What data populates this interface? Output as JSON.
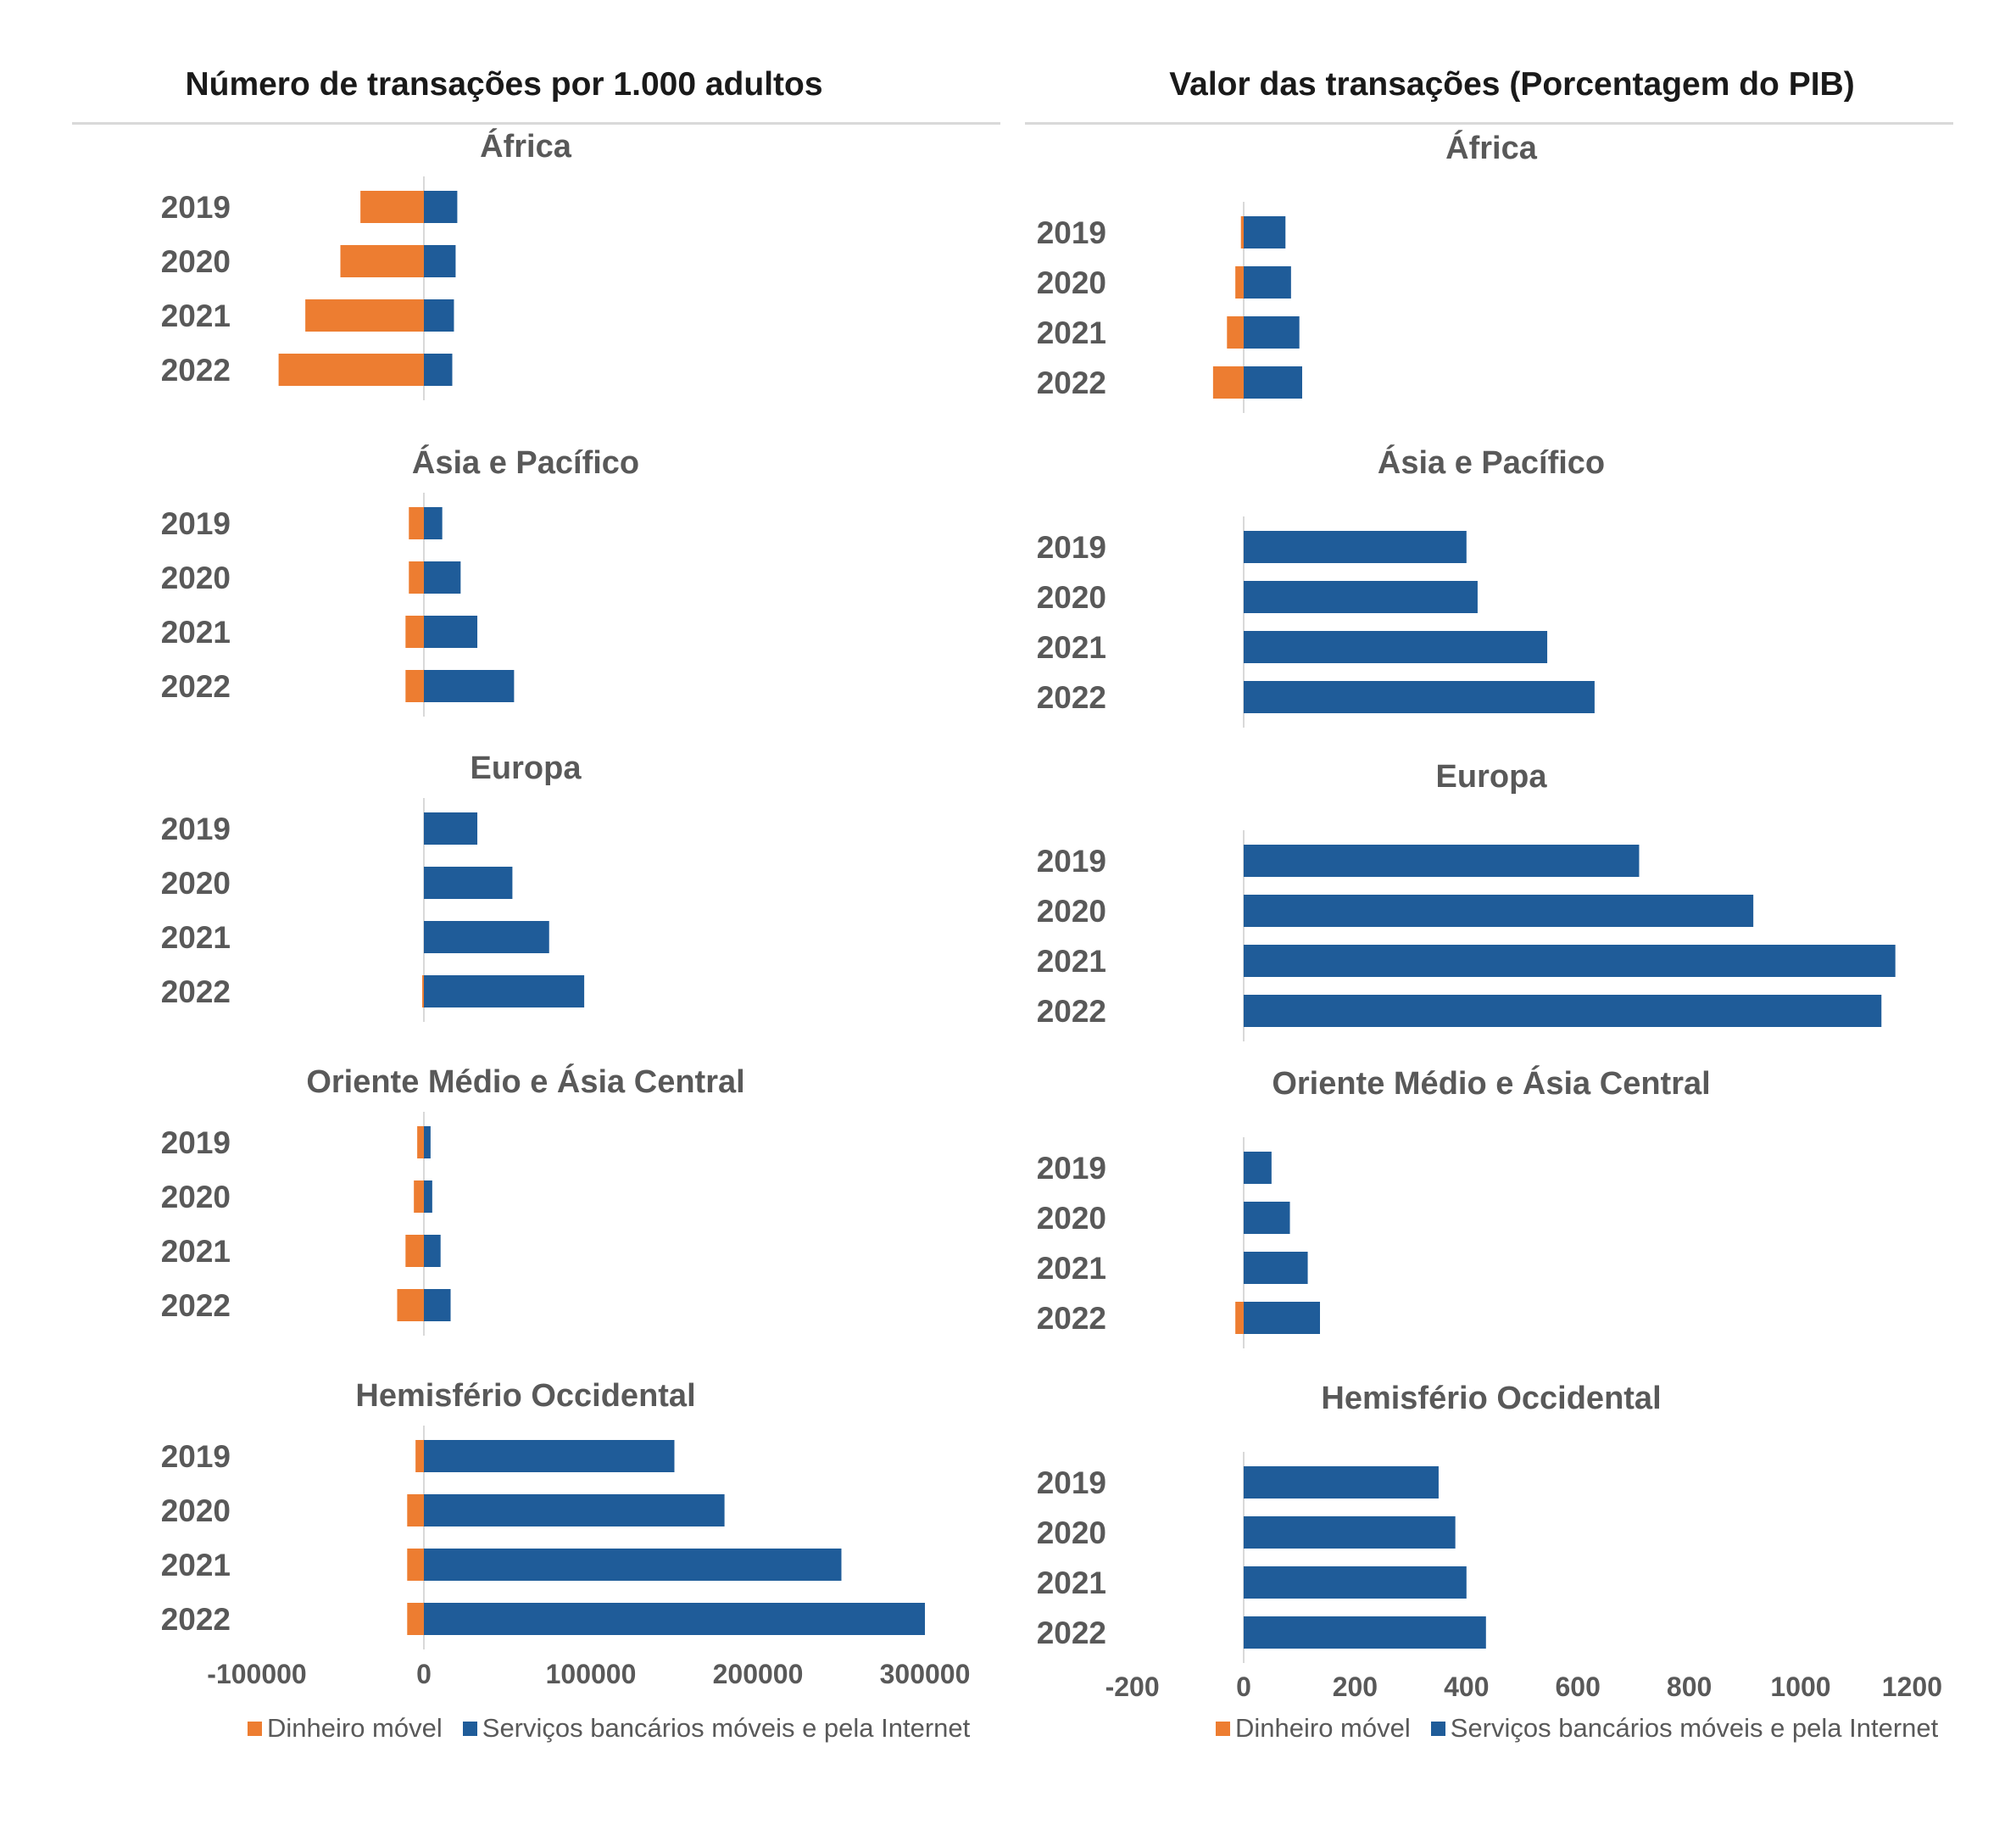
{
  "colors": {
    "mobile_money": "#ed7d31",
    "banking": "#1f5c99",
    "axis": "#d9d9d9"
  },
  "legend": {
    "mobile_money": "Dinheiro móvel",
    "banking": "Serviços bancários móveis e pela Internet"
  },
  "chart_data": [
    {
      "type": "bar",
      "orientation": "horizontal",
      "stacked": "diverging",
      "title": "Número de transações por 1.000 adultos",
      "xlim": [
        -100000,
        300000
      ],
      "xticks": [
        "-100000",
        "0",
        "100000",
        "200000",
        "300000"
      ],
      "categories": [
        "2019",
        "2020",
        "2021",
        "2022"
      ],
      "legend_position": "bottom",
      "panels": [
        {
          "title": "África",
          "series": [
            {
              "name": "Dinheiro móvel",
              "values": [
                -38000,
                -50000,
                -71000,
                -87000
              ]
            },
            {
              "name": "Serviços bancários móveis e pela Internet",
              "values": [
                20000,
                19000,
                18000,
                17000
              ]
            }
          ]
        },
        {
          "title": "Ásia e Pacífico",
          "series": [
            {
              "name": "Dinheiro móvel",
              "values": [
                -9000,
                -9000,
                -11000,
                -11000
              ]
            },
            {
              "name": "Serviços bancários móveis e pela Internet",
              "values": [
                11000,
                22000,
                32000,
                54000
              ]
            }
          ]
        },
        {
          "title": "Europa",
          "series": [
            {
              "name": "Dinheiro móvel",
              "values": [
                0,
                0,
                0,
                -1000
              ]
            },
            {
              "name": "Serviços bancários móveis e pela Internet",
              "values": [
                32000,
                53000,
                75000,
                96000
              ]
            }
          ]
        },
        {
          "title": "Oriente Médio e Ásia Central",
          "series": [
            {
              "name": "Dinheiro móvel",
              "values": [
                -4000,
                -6000,
                -11000,
                -16000
              ]
            },
            {
              "name": "Serviços bancários móveis e pela Internet",
              "values": [
                4000,
                5000,
                10000,
                16000
              ]
            }
          ]
        },
        {
          "title": "Hemisfério Occidental",
          "series": [
            {
              "name": "Dinheiro móvel",
              "values": [
                -5000,
                -10000,
                -10000,
                -10000
              ]
            },
            {
              "name": "Serviços bancários móveis e pela Internet",
              "values": [
                150000,
                180000,
                250000,
                300000
              ]
            }
          ]
        }
      ]
    },
    {
      "type": "bar",
      "orientation": "horizontal",
      "stacked": "diverging",
      "title": "Valor das transações (Porcentagem do PIB)",
      "xlim": [
        -200,
        1200
      ],
      "xticks": [
        "-200",
        "0",
        "200",
        "400",
        "600",
        "800",
        "1000",
        "1200"
      ],
      "categories": [
        "2019",
        "2020",
        "2021",
        "2022"
      ],
      "legend_position": "bottom",
      "panels": [
        {
          "title": "África",
          "series": [
            {
              "name": "Dinheiro móvel",
              "values": [
                -5,
                -15,
                -30,
                -55
              ]
            },
            {
              "name": "Serviços bancários móveis e pela Internet",
              "values": [
                75,
                85,
                100,
                105
              ]
            }
          ]
        },
        {
          "title": "Ásia e Pacífico",
          "series": [
            {
              "name": "Dinheiro móvel",
              "values": [
                0,
                0,
                0,
                0
              ]
            },
            {
              "name": "Serviços bancários móveis e pela Internet",
              "values": [
                400,
                420,
                545,
                630
              ]
            }
          ]
        },
        {
          "title": "Europa",
          "series": [
            {
              "name": "Dinheiro móvel",
              "values": [
                0,
                0,
                0,
                0
              ]
            },
            {
              "name": "Serviços bancários móveis e pela Internet",
              "values": [
                710,
                915,
                1170,
                1145
              ]
            }
          ]
        },
        {
          "title": "Oriente Médio e Ásia Central",
          "series": [
            {
              "name": "Dinheiro móvel",
              "values": [
                0,
                0,
                0,
                -15
              ]
            },
            {
              "name": "Serviços bancários móveis e pela Internet",
              "values": [
                50,
                83,
                115,
                137
              ]
            }
          ]
        },
        {
          "title": "Hemisfério Occidental",
          "series": [
            {
              "name": "Dinheiro móvel",
              "values": [
                0,
                0,
                0,
                0
              ]
            },
            {
              "name": "Serviços bancários móveis e pela Internet",
              "values": [
                350,
                380,
                400,
                435
              ]
            }
          ]
        }
      ]
    }
  ]
}
